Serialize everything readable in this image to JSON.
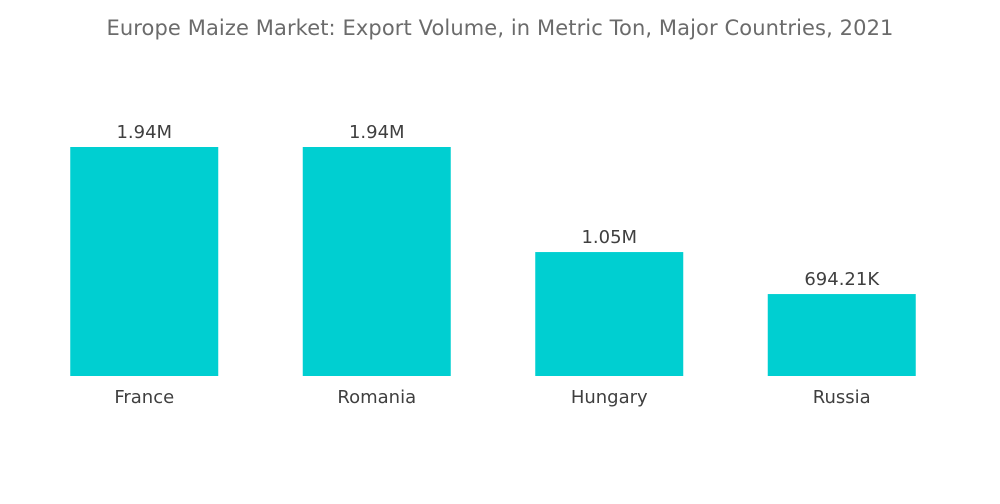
{
  "chart_data": {
    "type": "bar",
    "title": "Europe Maize Market: Export Volume, in Metric Ton, Major Countries, 2021",
    "xlabel": "",
    "ylabel": "",
    "categories": [
      "France",
      "Romania",
      "Hungary",
      "Russia"
    ],
    "values": [
      1940000,
      1940000,
      1050000,
      694210
    ],
    "data_labels": [
      "1.94M",
      "1.94M",
      "1.05M",
      "694.21K"
    ],
    "ylim": [
      0,
      1940000
    ],
    "grid": false,
    "legend": "none",
    "bar_color": "#00cfd1"
  }
}
